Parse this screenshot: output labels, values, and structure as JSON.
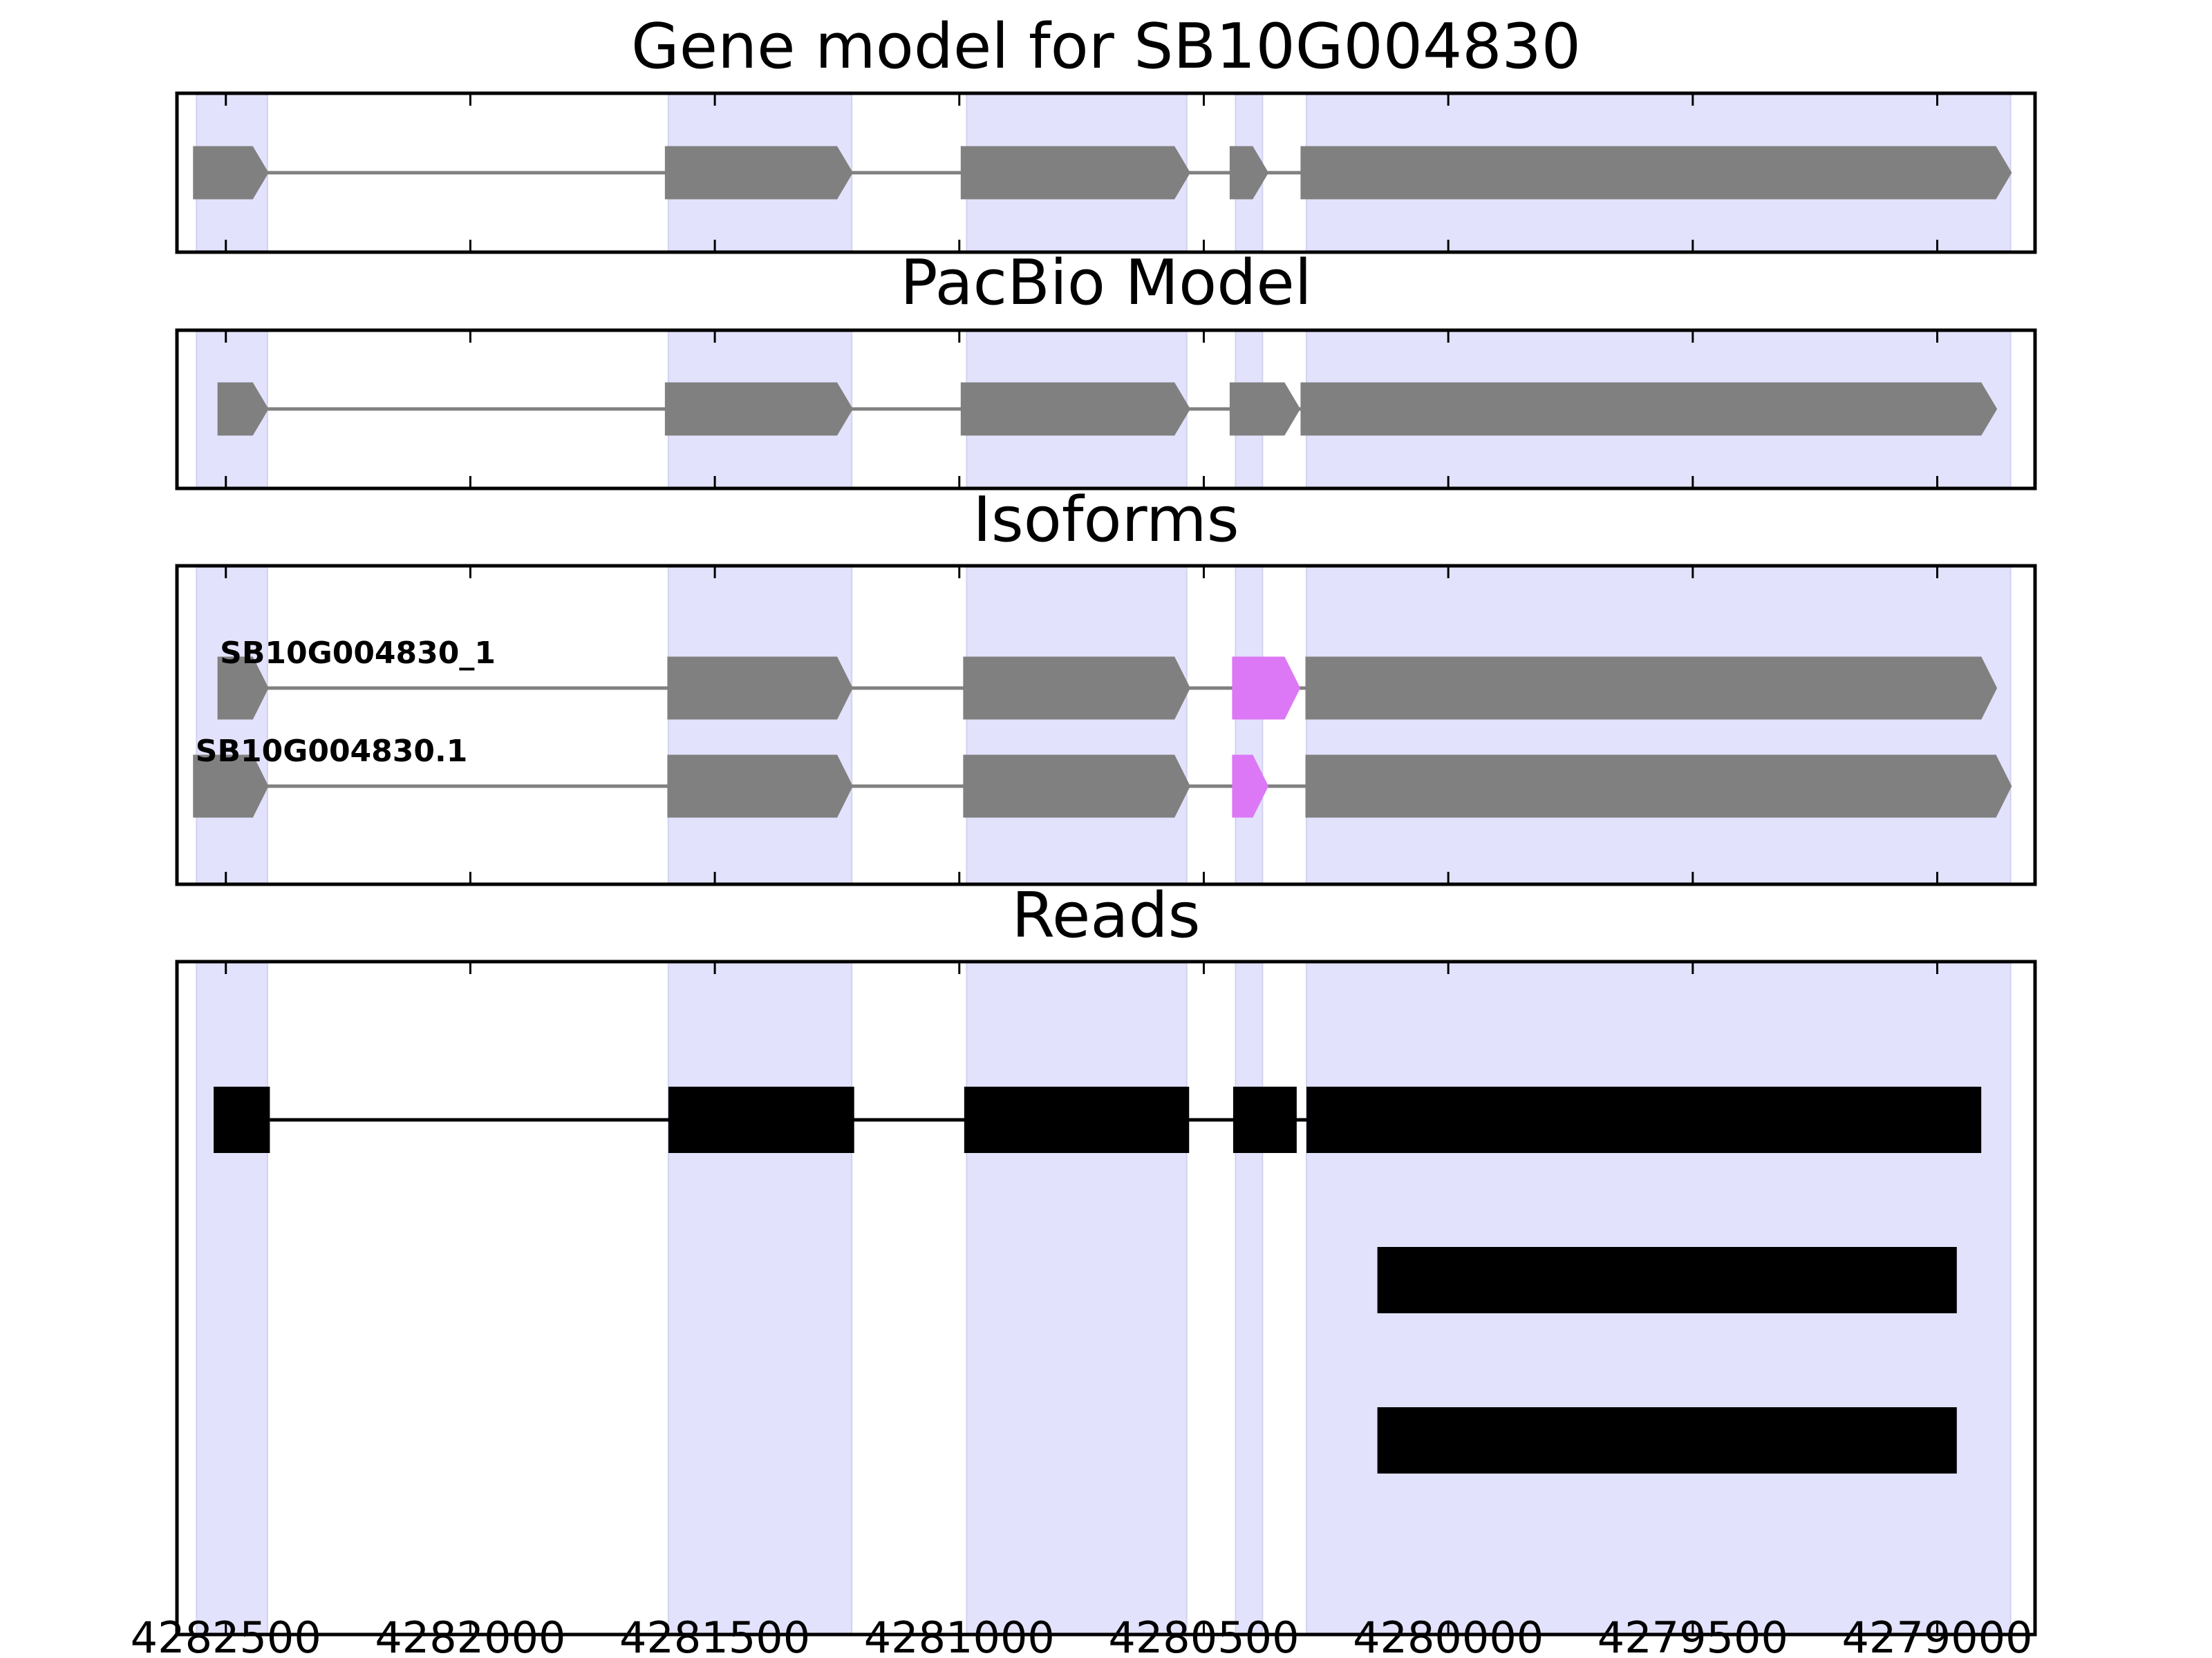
{
  "colors": {
    "exon_highlight": "#e2e2fc",
    "gene_feature": "#808080",
    "variant_feature": "#dc78f5",
    "read_block": "#000000",
    "intron_gene": "#808080",
    "intron_read": "#000000",
    "frame": "#000000"
  },
  "chart_data": {
    "type": "gene-model-track",
    "axis": {
      "orientation": "reversed",
      "xlim": [
        4282600,
        4278800
      ],
      "ticks": [
        4282500,
        4282000,
        4281500,
        4281000,
        4280500,
        4280000,
        4279500,
        4279000
      ],
      "tick_labels": [
        "4282500",
        "4282000",
        "4281500",
        "4281000",
        "4280500",
        "4280000",
        "4279500",
        "4279000"
      ],
      "grid": false
    },
    "highlight_regions": [
      [
        4282560,
        4282415
      ],
      [
        4281595,
        4281220
      ],
      [
        4280985,
        4280535
      ],
      [
        4280435,
        4280380
      ],
      [
        4280290,
        4278850
      ]
    ],
    "panels": [
      {
        "id": "gene-model",
        "title": "Gene model for SB10G004830",
        "tracks": [
          {
            "label": "",
            "exons": [
              {
                "start": 4282565,
                "end": 4282415
              },
              {
                "start": 4281600,
                "end": 4281220
              },
              {
                "start": 4280995,
                "end": 4280530
              },
              {
                "start": 4280445,
                "end": 4280370
              },
              {
                "start": 4280300,
                "end": 4278850
              }
            ]
          }
        ]
      },
      {
        "id": "pacbio-model",
        "title": "PacBio Model",
        "tracks": [
          {
            "label": "",
            "exons": [
              {
                "start": 4282515,
                "end": 4282415
              },
              {
                "start": 4281600,
                "end": 4281220
              },
              {
                "start": 4280995,
                "end": 4280530
              },
              {
                "start": 4280445,
                "end": 4280305
              },
              {
                "start": 4280300,
                "end": 4278880
              }
            ]
          }
        ]
      },
      {
        "id": "isoforms",
        "title": "Isoforms",
        "tracks": [
          {
            "label": "SB10G004830_1",
            "exons": [
              {
                "start": 4282515,
                "end": 4282415
              },
              {
                "start": 4281595,
                "end": 4281220
              },
              {
                "start": 4280990,
                "end": 4280530
              },
              {
                "start": 4280440,
                "end": 4280305,
                "variant": true
              },
              {
                "start": 4280290,
                "end": 4278880
              }
            ]
          },
          {
            "label": "SB10G004830.1",
            "exons": [
              {
                "start": 4282565,
                "end": 4282415
              },
              {
                "start": 4281595,
                "end": 4281220
              },
              {
                "start": 4280990,
                "end": 4280530
              },
              {
                "start": 4280440,
                "end": 4280370,
                "variant": true
              },
              {
                "start": 4280290,
                "end": 4278850
              }
            ]
          }
        ]
      },
      {
        "id": "reads",
        "title": "Reads",
        "tracks": [
          {
            "label": "",
            "blocks": [
              {
                "start": 4282525,
                "end": 4282410
              },
              {
                "start": 4281595,
                "end": 4281215
              },
              {
                "start": 4280990,
                "end": 4280530
              },
              {
                "start": 4280440,
                "end": 4280310
              },
              {
                "start": 4280290,
                "end": 4278910
              }
            ]
          },
          {
            "label": "",
            "blocks": [
              {
                "start": 4280145,
                "end": 4278960
              }
            ]
          },
          {
            "label": "",
            "blocks": [
              {
                "start": 4280145,
                "end": 4278960
              }
            ]
          }
        ]
      }
    ]
  }
}
